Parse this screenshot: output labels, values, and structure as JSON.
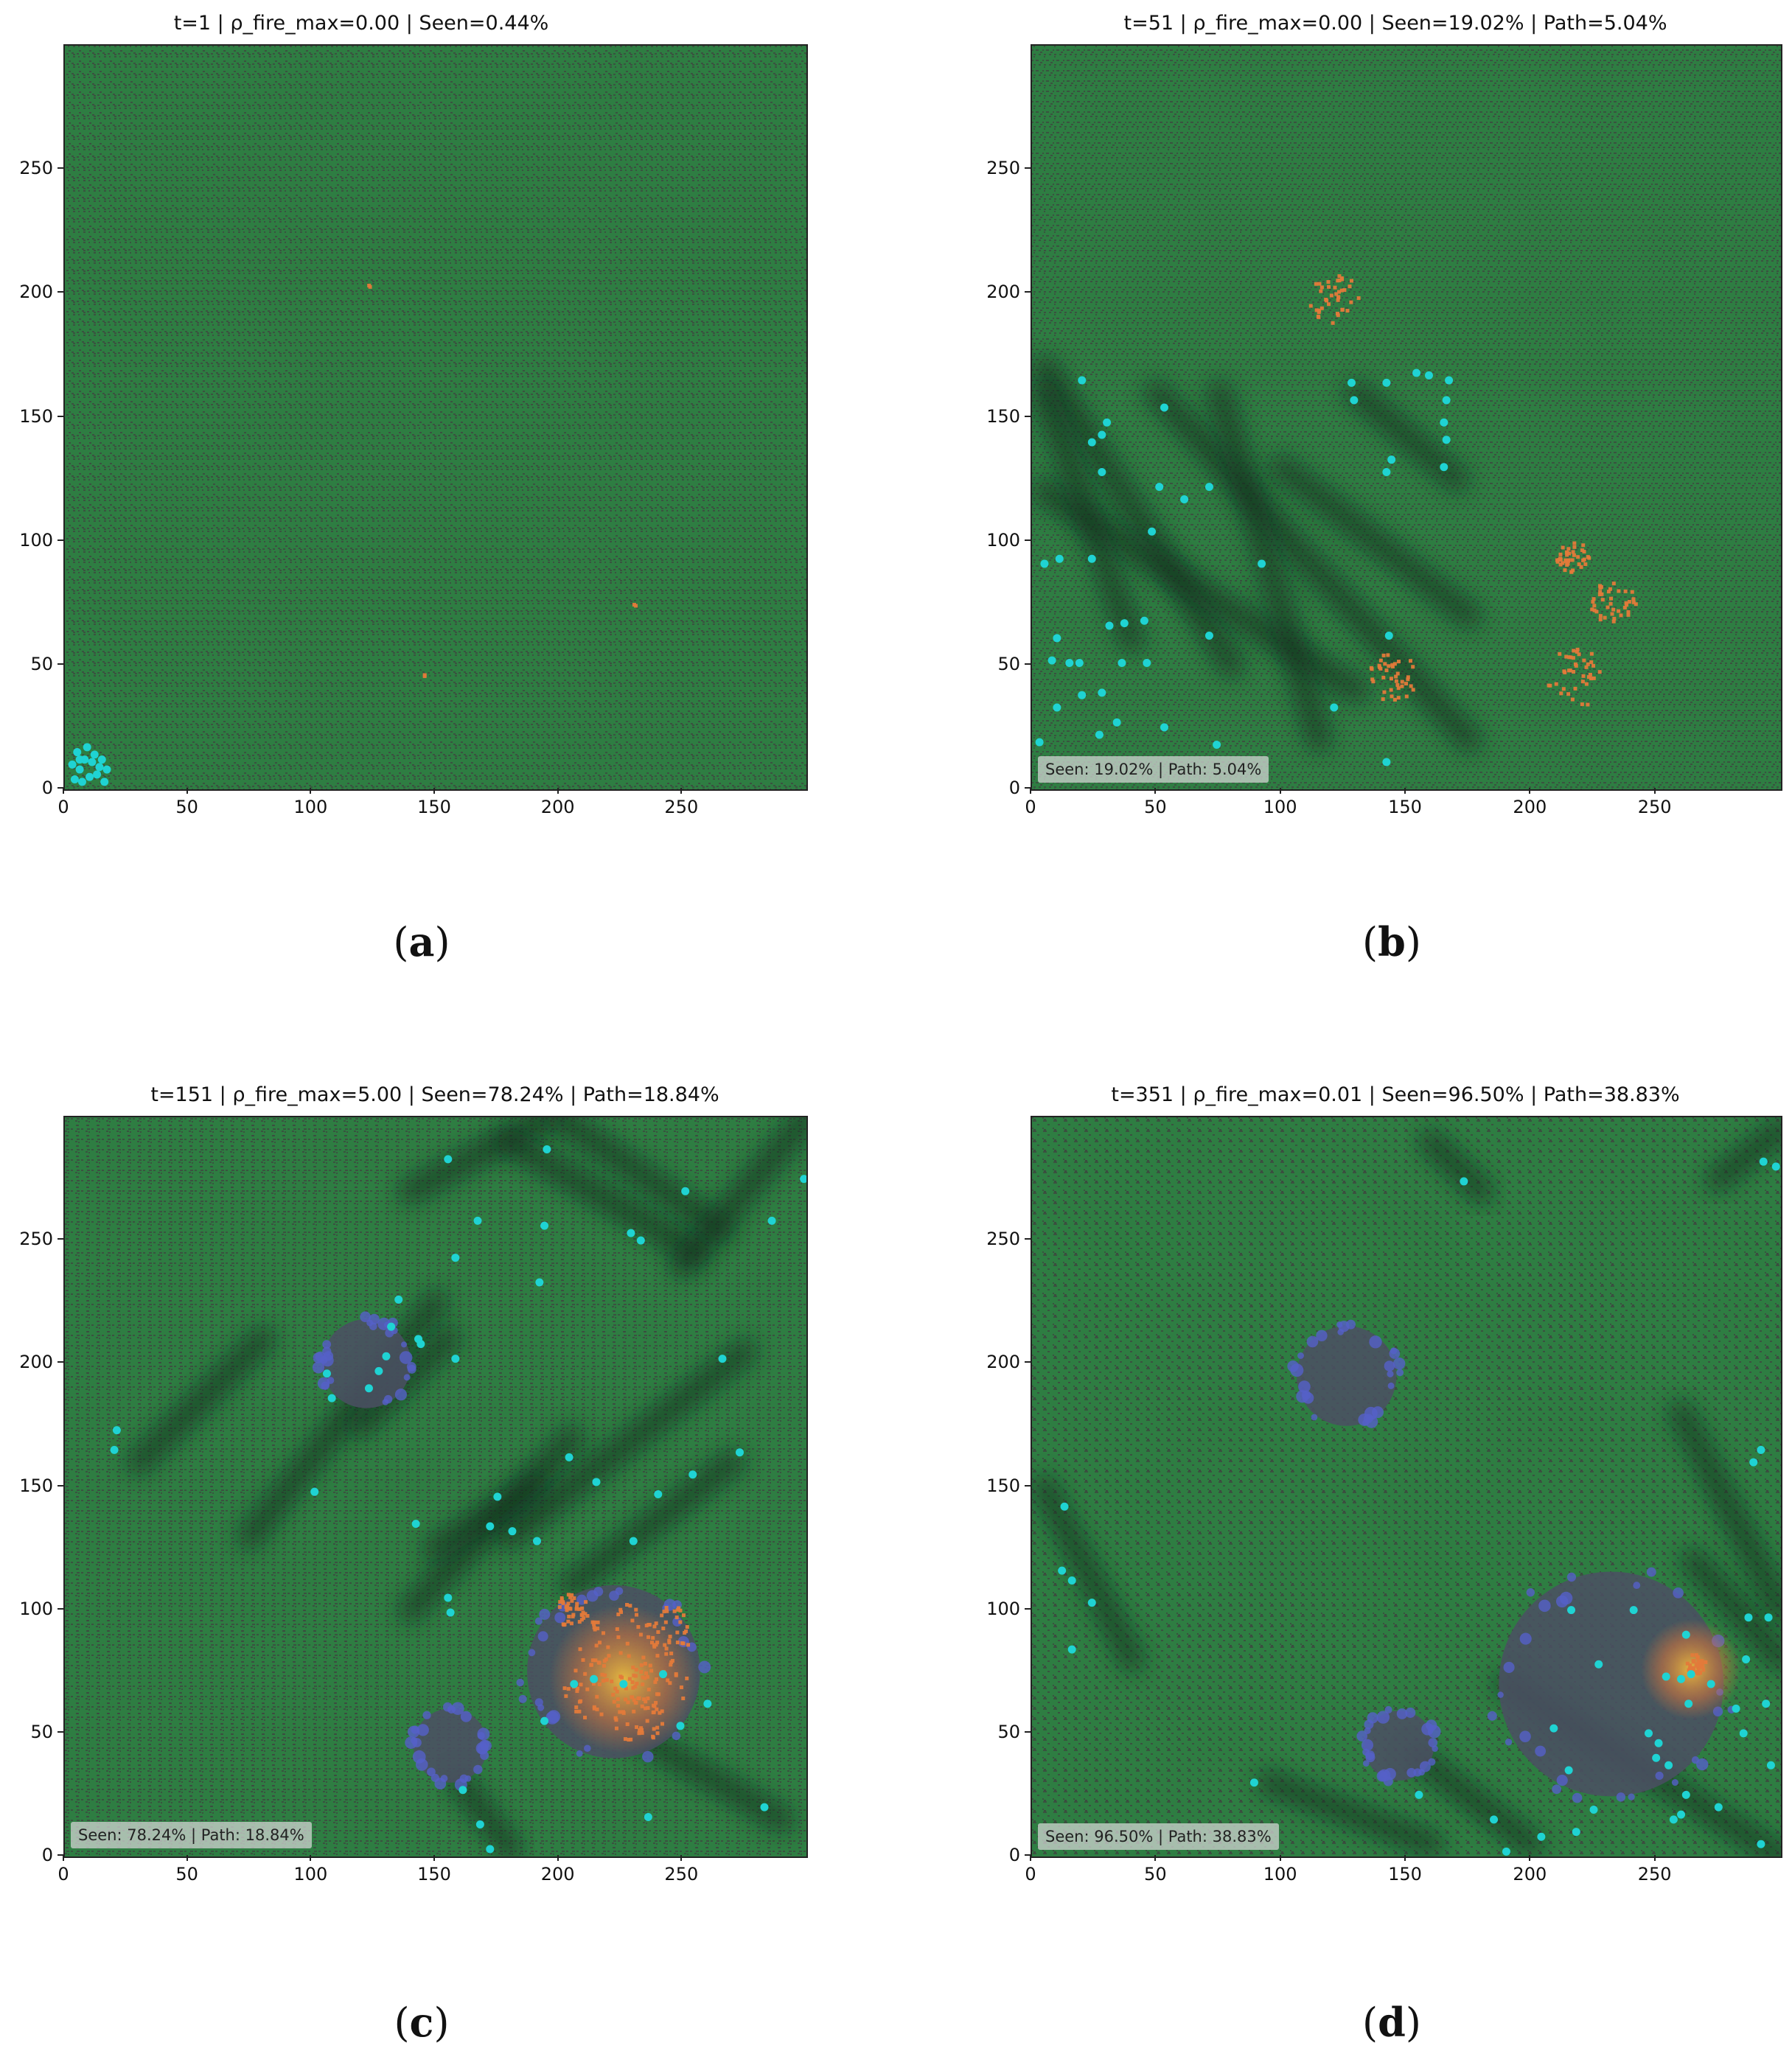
{
  "colors": {
    "vegetation": "#2e7d42",
    "ground": "#3c4a3f",
    "seen_shade": "#0b2a1c",
    "fire": "#e37a3a",
    "burned": "#5560c8",
    "hot": "#f4c23c",
    "agent": "#1fd3d3"
  },
  "chart_data": [
    {
      "type": "heatmap",
      "caption_letter": "a",
      "title": "t=1 | ρ_fire_max=0.00 | Seen=0.44%",
      "xlim": [
        0,
        300
      ],
      "ylim": [
        0,
        300
      ],
      "xticks": [
        0,
        50,
        100,
        150,
        200,
        250
      ],
      "yticks": [
        0,
        50,
        100,
        150,
        200,
        250
      ],
      "inset": "",
      "agents": [
        [
          4,
          4
        ],
        [
          6,
          8
        ],
        [
          8,
          12
        ],
        [
          10,
          5
        ],
        [
          12,
          14
        ],
        [
          14,
          9
        ],
        [
          16,
          3
        ],
        [
          5,
          15
        ],
        [
          9,
          17
        ],
        [
          13,
          6
        ],
        [
          15,
          12
        ],
        [
          3,
          10
        ],
        [
          7,
          3
        ],
        [
          11,
          11
        ],
        [
          17,
          8
        ],
        [
          6,
          12
        ]
      ],
      "seen_paths": [],
      "fires": [
        [
          124,
          203,
          1
        ],
        [
          231,
          74,
          1
        ],
        [
          145,
          46,
          1
        ]
      ],
      "burned": [],
      "hotspots": []
    },
    {
      "type": "heatmap",
      "caption_letter": "b",
      "title": "t=51 | ρ_fire_max=0.00 | Seen=19.02% | Path=5.04%",
      "xlim": [
        0,
        300
      ],
      "ylim": [
        0,
        300
      ],
      "xticks": [
        0,
        50,
        100,
        150,
        200,
        250
      ],
      "yticks": [
        0,
        50,
        100,
        150,
        200,
        250
      ],
      "inset": "Seen: 19.02%  |  Path: 5.04%",
      "agents": [
        [
          20,
          165
        ],
        [
          53,
          154
        ],
        [
          30,
          148
        ],
        [
          28,
          143
        ],
        [
          24,
          140
        ],
        [
          28,
          128
        ],
        [
          51,
          122
        ],
        [
          61,
          117
        ],
        [
          71,
          122
        ],
        [
          48,
          104
        ],
        [
          11,
          93
        ],
        [
          5,
          91
        ],
        [
          24,
          93
        ],
        [
          92,
          91
        ],
        [
          10,
          61
        ],
        [
          31,
          66
        ],
        [
          37,
          67
        ],
        [
          45,
          68
        ],
        [
          8,
          52
        ],
        [
          15,
          51
        ],
        [
          19,
          51
        ],
        [
          36,
          51
        ],
        [
          46,
          51
        ],
        [
          71,
          62
        ],
        [
          28,
          39
        ],
        [
          20,
          38
        ],
        [
          34,
          27
        ],
        [
          10,
          33
        ],
        [
          27,
          22
        ],
        [
          3,
          19
        ],
        [
          53,
          25
        ],
        [
          74,
          18
        ],
        [
          121,
          33
        ],
        [
          129,
          157
        ],
        [
          128,
          164
        ],
        [
          142,
          164
        ],
        [
          159,
          167
        ],
        [
          154,
          168
        ],
        [
          167,
          165
        ],
        [
          166,
          157
        ],
        [
          165,
          148
        ],
        [
          166,
          141
        ],
        [
          144,
          133
        ],
        [
          165,
          130
        ],
        [
          142,
          128
        ],
        [
          143,
          62
        ],
        [
          142,
          11
        ]
      ],
      "seen_paths": [
        [
          [
            5,
            170
          ],
          [
            80,
            50
          ]
        ],
        [
          [
            5,
            120
          ],
          [
            130,
            40
          ]
        ],
        [
          [
            50,
            160
          ],
          [
            175,
            20
          ]
        ],
        [
          [
            75,
            160
          ],
          [
            115,
            20
          ]
        ],
        [
          [
            100,
            130
          ],
          [
            175,
            70
          ]
        ],
        [
          [
            130,
            160
          ],
          [
            170,
            125
          ]
        ],
        [
          [
            5,
            160
          ],
          [
            40,
            60
          ]
        ]
      ],
      "fires": [
        [
          121,
          198,
          10
        ],
        [
          217,
          93,
          7
        ],
        [
          233,
          75,
          9
        ],
        [
          145,
          45,
          10
        ],
        [
          218,
          45,
          12
        ]
      ],
      "burned": [],
      "hotspots": []
    },
    {
      "type": "heatmap",
      "caption_letter": "c",
      "title": "t=151 | ρ_fire_max=5.00 | Seen=78.24% | Path=18.84%",
      "xlim": [
        0,
        300
      ],
      "ylim": [
        0,
        300
      ],
      "xticks": [
        0,
        50,
        100,
        150,
        200,
        250
      ],
      "yticks": [
        0,
        50,
        100,
        150,
        200,
        250
      ],
      "inset": "Seen: 78.24%  |  Path: 18.84%",
      "agents": [
        [
          155,
          283
        ],
        [
          195,
          287
        ],
        [
          167,
          258
        ],
        [
          158,
          243
        ],
        [
          194,
          256
        ],
        [
          229,
          253
        ],
        [
          233,
          250
        ],
        [
          251,
          270
        ],
        [
          286,
          258
        ],
        [
          299,
          275
        ],
        [
          192,
          233
        ],
        [
          135,
          226
        ],
        [
          144,
          208
        ],
        [
          143,
          210
        ],
        [
          132,
          215
        ],
        [
          130,
          203
        ],
        [
          123,
          190
        ],
        [
          106,
          196
        ],
        [
          108,
          186
        ],
        [
          158,
          202
        ],
        [
          21,
          173
        ],
        [
          20,
          165
        ],
        [
          204,
          162
        ],
        [
          215,
          152
        ],
        [
          240,
          147
        ],
        [
          273,
          164
        ],
        [
          266,
          202
        ],
        [
          254,
          155
        ],
        [
          127,
          197
        ],
        [
          101,
          148
        ],
        [
          142,
          135
        ],
        [
          175,
          146
        ],
        [
          172,
          134
        ],
        [
          181,
          132
        ],
        [
          191,
          128
        ],
        [
          230,
          128
        ],
        [
          155,
          105
        ],
        [
          156,
          99
        ],
        [
          194,
          55
        ],
        [
          206,
          70
        ],
        [
          214,
          72
        ],
        [
          226,
          70
        ],
        [
          242,
          74
        ],
        [
          260,
          62
        ],
        [
          249,
          53
        ],
        [
          236,
          16
        ],
        [
          161,
          27
        ],
        [
          168,
          13
        ],
        [
          172,
          3
        ],
        [
          283,
          20
        ]
      ],
      "seen_paths": [
        [
          [
            30,
            160
          ],
          [
            80,
            210
          ]
        ],
        [
          [
            75,
            130
          ],
          [
            150,
            225
          ]
        ],
        [
          [
            140,
            100
          ],
          [
            205,
            170
          ]
        ],
        [
          [
            150,
            125
          ],
          [
            190,
            150
          ]
        ],
        [
          [
            140,
            270
          ],
          [
            195,
            300
          ]
        ],
        [
          [
            180,
            290
          ],
          [
            255,
            245
          ]
        ],
        [
          [
            200,
            300
          ],
          [
            265,
            255
          ]
        ],
        [
          [
            250,
            240
          ],
          [
            300,
            300
          ]
        ],
        [
          [
            180,
            130
          ],
          [
            275,
            205
          ]
        ],
        [
          [
            205,
            110
          ],
          [
            270,
            160
          ]
        ],
        [
          [
            160,
            30
          ],
          [
            180,
            3
          ]
        ],
        [
          [
            230,
            50
          ],
          [
            290,
            15
          ]
        ],
        [
          [
            120,
            175
          ],
          [
            155,
            210
          ]
        ]
      ],
      "fires": [
        [
          225,
          85,
          18
        ],
        [
          215,
          68,
          13
        ],
        [
          240,
          70,
          12
        ],
        [
          245,
          92,
          10
        ],
        [
          205,
          100,
          7
        ],
        [
          232,
          56,
          10
        ]
      ],
      "burned": [
        [
          122,
          200,
          18
        ],
        [
          156,
          45,
          15
        ],
        [
          222,
          75,
          35
        ]
      ],
      "hotspots": [
        [
          226,
          72,
          30
        ]
      ]
    },
    {
      "type": "heatmap",
      "caption_letter": "d",
      "title": "t=351 | ρ_fire_max=0.01 | Seen=96.50% | Path=38.83%",
      "xlim": [
        0,
        300
      ],
      "ylim": [
        0,
        300
      ],
      "xticks": [
        0,
        50,
        100,
        150,
        200,
        250
      ],
      "yticks": [
        0,
        50,
        100,
        150,
        200,
        250
      ],
      "inset": "Seen: 96.50%  |  Path: 38.83%",
      "agents": [
        [
          173,
          274
        ],
        [
          293,
          282
        ],
        [
          298,
          280
        ],
        [
          292,
          165
        ],
        [
          289,
          160
        ],
        [
          13,
          142
        ],
        [
          12,
          116
        ],
        [
          16,
          112
        ],
        [
          24,
          103
        ],
        [
          16,
          84
        ],
        [
          89,
          30
        ],
        [
          155,
          25
        ],
        [
          185,
          15
        ],
        [
          204,
          8
        ],
        [
          190,
          2
        ],
        [
          218,
          10
        ],
        [
          225,
          19
        ],
        [
          215,
          35
        ],
        [
          209,
          52
        ],
        [
          216,
          100
        ],
        [
          227,
          78
        ],
        [
          241,
          100
        ],
        [
          262,
          90
        ],
        [
          263,
          62
        ],
        [
          264,
          74
        ],
        [
          254,
          73
        ],
        [
          260,
          72
        ],
        [
          272,
          70
        ],
        [
          247,
          50
        ],
        [
          251,
          46
        ],
        [
          250,
          40
        ],
        [
          255,
          37
        ],
        [
          262,
          25
        ],
        [
          260,
          17
        ],
        [
          257,
          15
        ],
        [
          296,
          37
        ],
        [
          282,
          60
        ],
        [
          294,
          62
        ],
        [
          286,
          80
        ],
        [
          295,
          97
        ],
        [
          287,
          97
        ],
        [
          285,
          50
        ],
        [
          275,
          20
        ],
        [
          292,
          5
        ]
      ],
      "seen_paths": [
        [
          [
            5,
            150
          ],
          [
            40,
            80
          ]
        ],
        [
          [
            95,
            30
          ],
          [
            160,
            5
          ]
        ],
        [
          [
            155,
            40
          ],
          [
            200,
            5
          ]
        ],
        [
          [
            190,
            70
          ],
          [
            300,
            0
          ]
        ],
        [
          [
            260,
            180
          ],
          [
            300,
            100
          ]
        ],
        [
          [
            265,
            120
          ],
          [
            300,
            80
          ]
        ],
        [
          [
            160,
            290
          ],
          [
            180,
            270
          ]
        ],
        [
          [
            275,
            275
          ],
          [
            300,
            295
          ]
        ]
      ],
      "fires": [
        [
          266,
          78,
          4
        ]
      ],
      "burned": [
        [
          126,
          195,
          20
        ],
        [
          147,
          45,
          14
        ],
        [
          232,
          70,
          45
        ]
      ],
      "hotspots": [
        [
          264,
          76,
          20
        ]
      ]
    }
  ]
}
